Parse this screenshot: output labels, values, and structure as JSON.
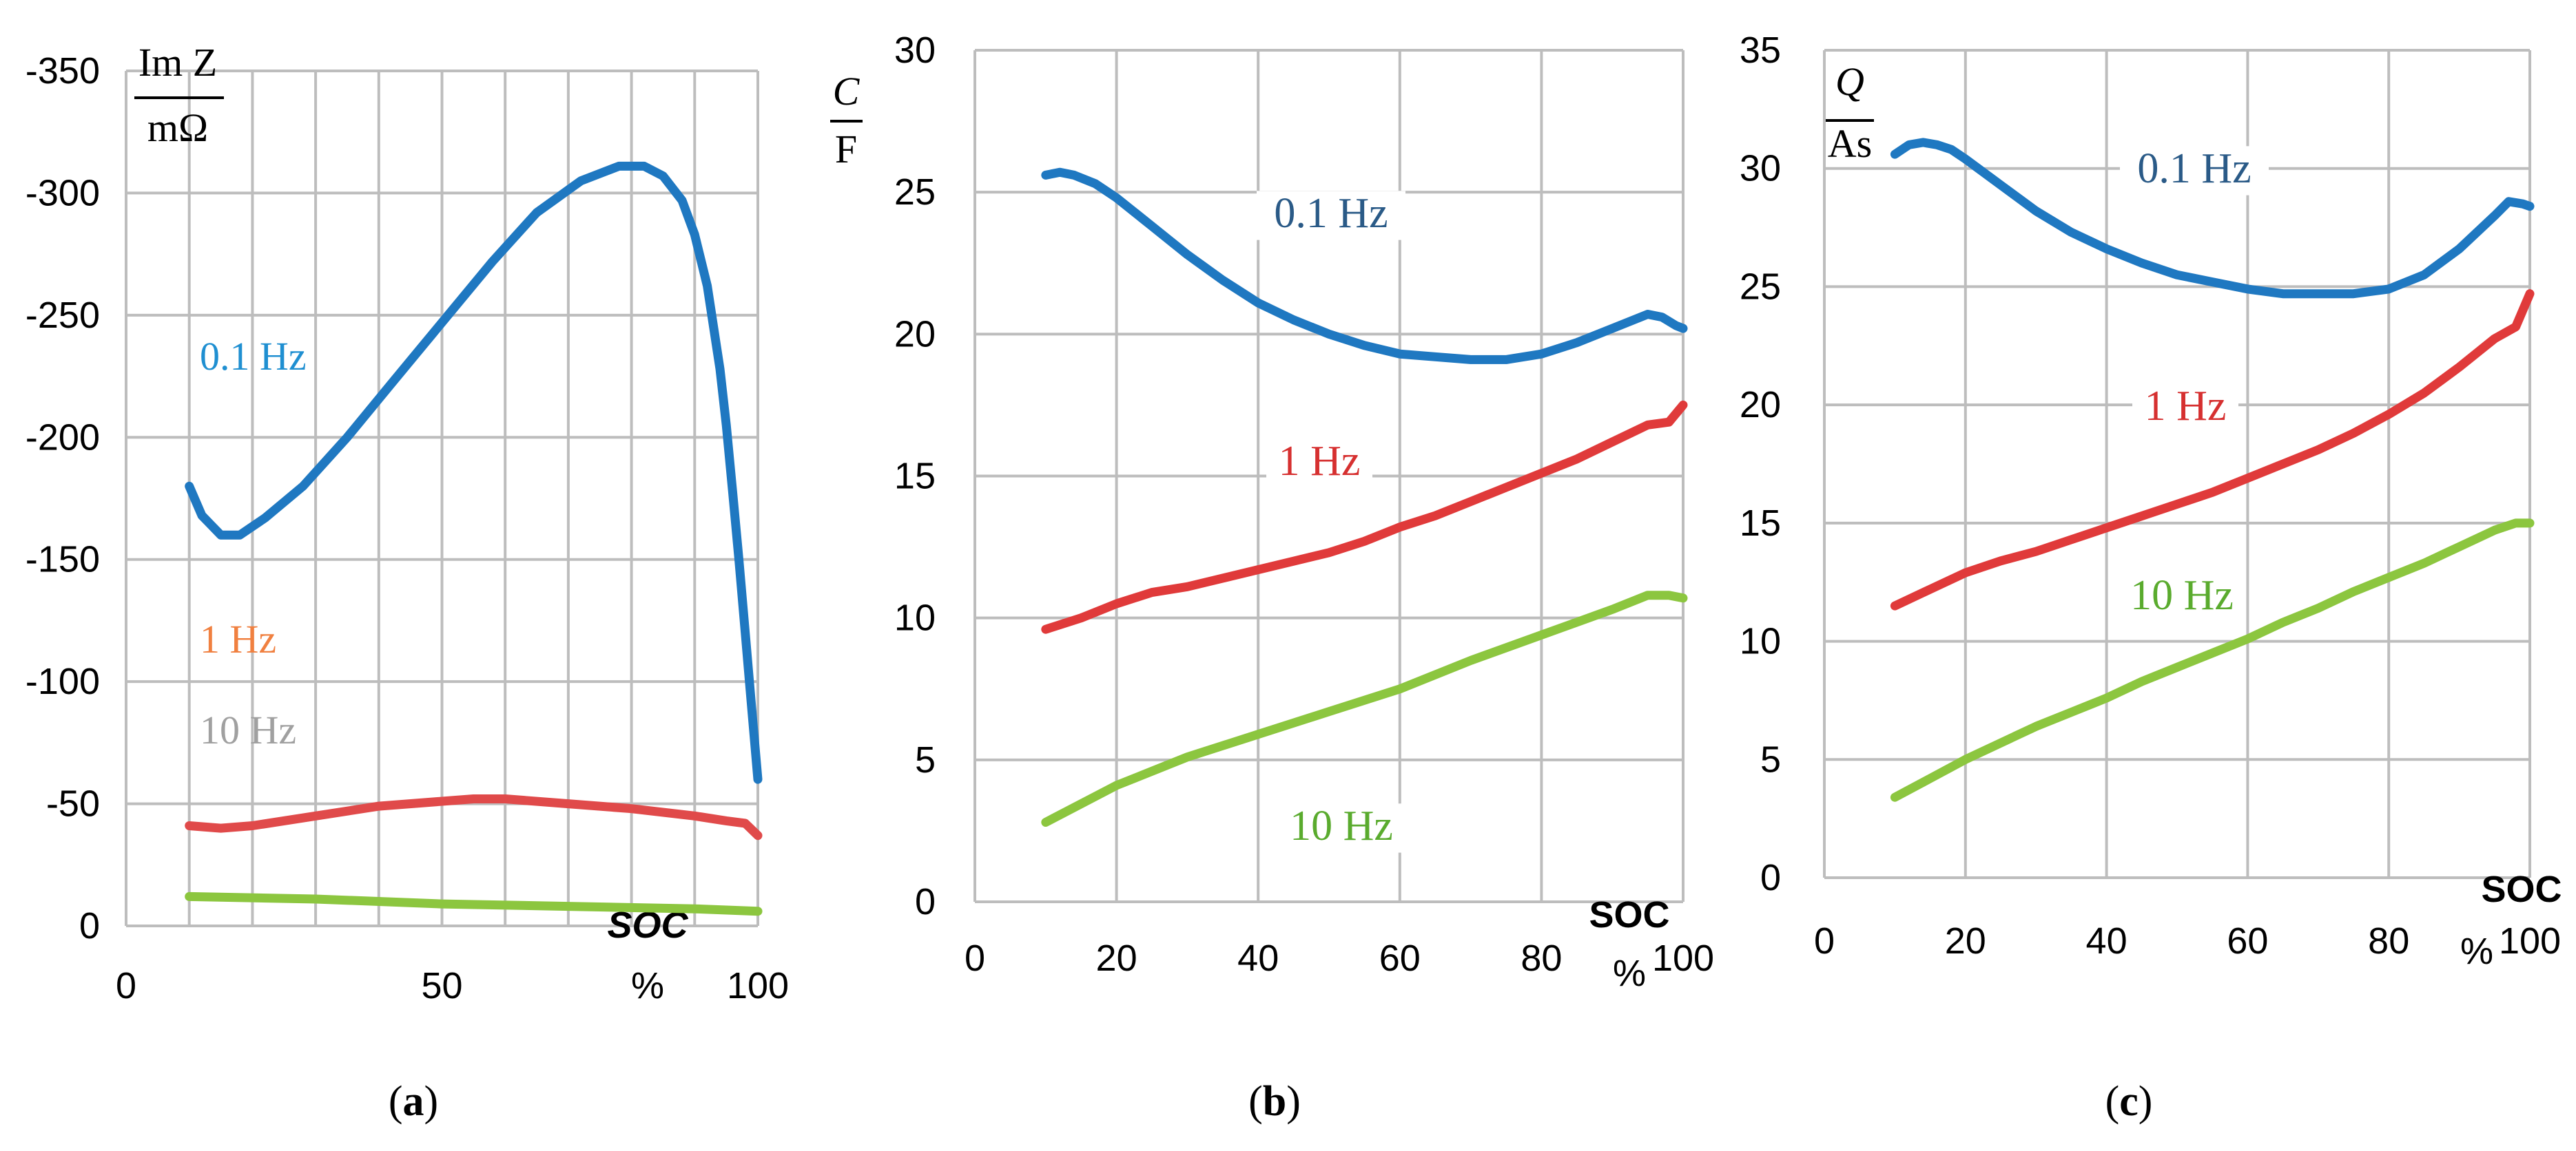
{
  "chart_data": [
    {
      "type": "line",
      "panel_label": "(a)",
      "ylabel_top": "Im Z",
      "ylabel_bottom": "mΩ",
      "xlabel_top": "SOC",
      "xlabel_bottom": "%",
      "xlim": [
        0,
        100
      ],
      "ylim": [
        0,
        -350
      ],
      "xticks": [
        0,
        50,
        100
      ],
      "yticks": [
        0,
        -50,
        -100,
        -150,
        -200,
        -250,
        -300,
        -350
      ],
      "grid": true,
      "series": [
        {
          "name": "0.1 Hz",
          "color": "#1f78c1",
          "label_color": "#1f8fd1",
          "x": [
            10,
            12,
            15,
            18,
            22,
            28,
            35,
            42,
            50,
            58,
            65,
            72,
            78,
            82,
            85,
            88,
            90,
            92,
            94,
            95,
            96,
            97,
            98,
            99,
            100
          ],
          "y": [
            -180,
            -168,
            -160,
            -160,
            -167,
            -180,
            -200,
            -222,
            -247,
            -272,
            -292,
            -305,
            -311,
            -311,
            -307,
            -297,
            -283,
            -262,
            -228,
            -205,
            -178,
            -150,
            -120,
            -90,
            -60
          ]
        },
        {
          "name": "1 Hz",
          "color": "#e04a4a",
          "label_color": "#f08040",
          "x": [
            10,
            15,
            20,
            30,
            40,
            50,
            55,
            60,
            70,
            80,
            90,
            95,
            98,
            100
          ],
          "y": [
            -41,
            -40,
            -41,
            -45,
            -49,
            -51,
            -52,
            -52,
            -50,
            -48,
            -45,
            -43,
            -42,
            -37
          ]
        },
        {
          "name": "10 Hz",
          "color": "#8cc63f",
          "label_color": "#a0a0a0",
          "x": [
            10,
            30,
            50,
            70,
            90,
            100
          ],
          "y": [
            -12,
            -11,
            -9,
            -8,
            -7,
            -6
          ]
        }
      ]
    },
    {
      "type": "line",
      "panel_label": "(b)",
      "ylabel_top": "C",
      "ylabel_bottom": "F",
      "xlabel_top": "SOC",
      "xlabel_bottom": "%",
      "xlim": [
        0,
        100
      ],
      "ylim": [
        0,
        30
      ],
      "xticks": [
        0,
        20,
        40,
        60,
        80,
        100
      ],
      "yticks": [
        0,
        5,
        10,
        15,
        20,
        25,
        30
      ],
      "grid": true,
      "series": [
        {
          "name": "0.1 Hz",
          "color": "#1f78c1",
          "label_color": "#2a5a87",
          "x": [
            10,
            12,
            14,
            17,
            20,
            25,
            30,
            35,
            40,
            45,
            50,
            55,
            60,
            65,
            70,
            75,
            80,
            85,
            90,
            95,
            97,
            99,
            100
          ],
          "y": [
            25.6,
            25.7,
            25.6,
            25.3,
            24.8,
            23.8,
            22.8,
            21.9,
            21.1,
            20.5,
            20.0,
            19.6,
            19.3,
            19.2,
            19.1,
            19.1,
            19.3,
            19.7,
            20.2,
            20.7,
            20.6,
            20.3,
            20.2
          ]
        },
        {
          "name": "1 Hz",
          "color": "#e03a3a",
          "label_color": "#d63030",
          "x": [
            10,
            15,
            20,
            25,
            30,
            35,
            40,
            45,
            50,
            55,
            60,
            65,
            70,
            75,
            80,
            85,
            90,
            95,
            98,
            100
          ],
          "y": [
            9.6,
            10.0,
            10.5,
            10.9,
            11.1,
            11.4,
            11.7,
            12.0,
            12.3,
            12.7,
            13.2,
            13.6,
            14.1,
            14.6,
            15.1,
            15.6,
            16.2,
            16.8,
            16.9,
            17.5
          ]
        },
        {
          "name": "10 Hz",
          "color": "#8cc63f",
          "label_color": "#5aab2e",
          "x": [
            10,
            20,
            30,
            40,
            50,
            60,
            70,
            80,
            90,
            95,
            98,
            100
          ],
          "y": [
            2.8,
            4.1,
            5.1,
            5.9,
            6.7,
            7.5,
            8.5,
            9.4,
            10.3,
            10.8,
            10.8,
            10.7
          ]
        }
      ]
    },
    {
      "type": "line",
      "panel_label": "(c)",
      "ylabel_top": "Q",
      "ylabel_bottom": "As",
      "xlabel_top": "SOC",
      "xlabel_bottom": "%",
      "xlim": [
        0,
        100
      ],
      "ylim": [
        0,
        35
      ],
      "xticks": [
        0,
        20,
        40,
        60,
        80,
        100
      ],
      "yticks": [
        0,
        5,
        10,
        15,
        20,
        25,
        30,
        35
      ],
      "grid": true,
      "series": [
        {
          "name": "0.1 Hz",
          "color": "#1f78c1",
          "label_color": "#2a5a87",
          "x": [
            10,
            12,
            14,
            16,
            18,
            20,
            25,
            30,
            35,
            40,
            45,
            50,
            55,
            60,
            65,
            70,
            75,
            80,
            85,
            90,
            95,
            97,
            99,
            100
          ],
          "y": [
            30.6,
            31.0,
            31.1,
            31.0,
            30.8,
            30.4,
            29.3,
            28.2,
            27.3,
            26.6,
            26.0,
            25.5,
            25.2,
            24.9,
            24.7,
            24.7,
            24.7,
            24.9,
            25.5,
            26.6,
            28.0,
            28.6,
            28.5,
            28.4
          ]
        },
        {
          "name": "1 Hz",
          "color": "#e03a3a",
          "label_color": "#d63030",
          "x": [
            10,
            15,
            20,
            25,
            30,
            35,
            40,
            45,
            50,
            55,
            60,
            65,
            70,
            75,
            80,
            85,
            90,
            95,
            98,
            100
          ],
          "y": [
            11.5,
            12.2,
            12.9,
            13.4,
            13.8,
            14.3,
            14.8,
            15.3,
            15.8,
            16.3,
            16.9,
            17.5,
            18.1,
            18.8,
            19.6,
            20.5,
            21.6,
            22.8,
            23.3,
            24.7
          ]
        },
        {
          "name": "10 Hz",
          "color": "#8cc63f",
          "label_color": "#5aab2e",
          "x": [
            10,
            15,
            20,
            25,
            30,
            35,
            40,
            45,
            50,
            55,
            60,
            65,
            70,
            75,
            80,
            85,
            90,
            95,
            98,
            100
          ],
          "y": [
            3.4,
            4.2,
            5.0,
            5.7,
            6.4,
            7.0,
            7.6,
            8.3,
            8.9,
            9.5,
            10.1,
            10.8,
            11.4,
            12.1,
            12.7,
            13.3,
            14.0,
            14.7,
            15.0,
            15.0
          ]
        }
      ]
    }
  ]
}
